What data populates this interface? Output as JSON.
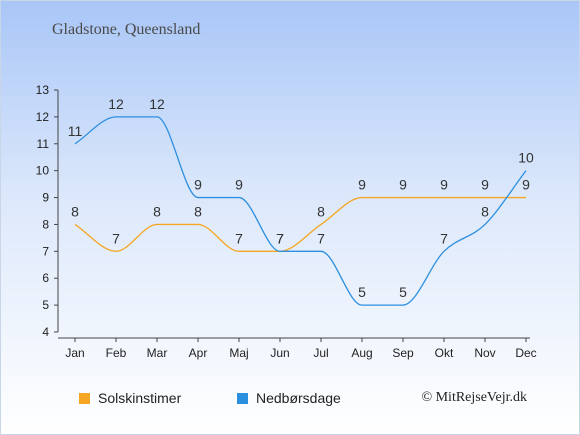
{
  "chart_data": {
    "type": "line",
    "title": "Gladstone, Queensland",
    "categories": [
      "Jan",
      "Feb",
      "Mar",
      "Apr",
      "Maj",
      "Jun",
      "Jul",
      "Aug",
      "Sep",
      "Okt",
      "Nov",
      "Dec"
    ],
    "series": [
      {
        "name": "Solskinstimer",
        "color": "#f5a623",
        "values": [
          8,
          7,
          8,
          8,
          7,
          7,
          8,
          9,
          9,
          9,
          9,
          9
        ]
      },
      {
        "name": "Nedbørsdage",
        "color": "#2b8fe0",
        "values": [
          11,
          12,
          12,
          9,
          9,
          7,
          7,
          5,
          5,
          7,
          8,
          10
        ]
      }
    ],
    "ylim": [
      4,
      13
    ],
    "yticks": [
      4,
      5,
      6,
      7,
      8,
      9,
      10,
      11,
      12,
      13
    ],
    "grid": false,
    "legend_position": "bottom-left"
  },
  "copyright": "© MitRejseVejr.dk"
}
